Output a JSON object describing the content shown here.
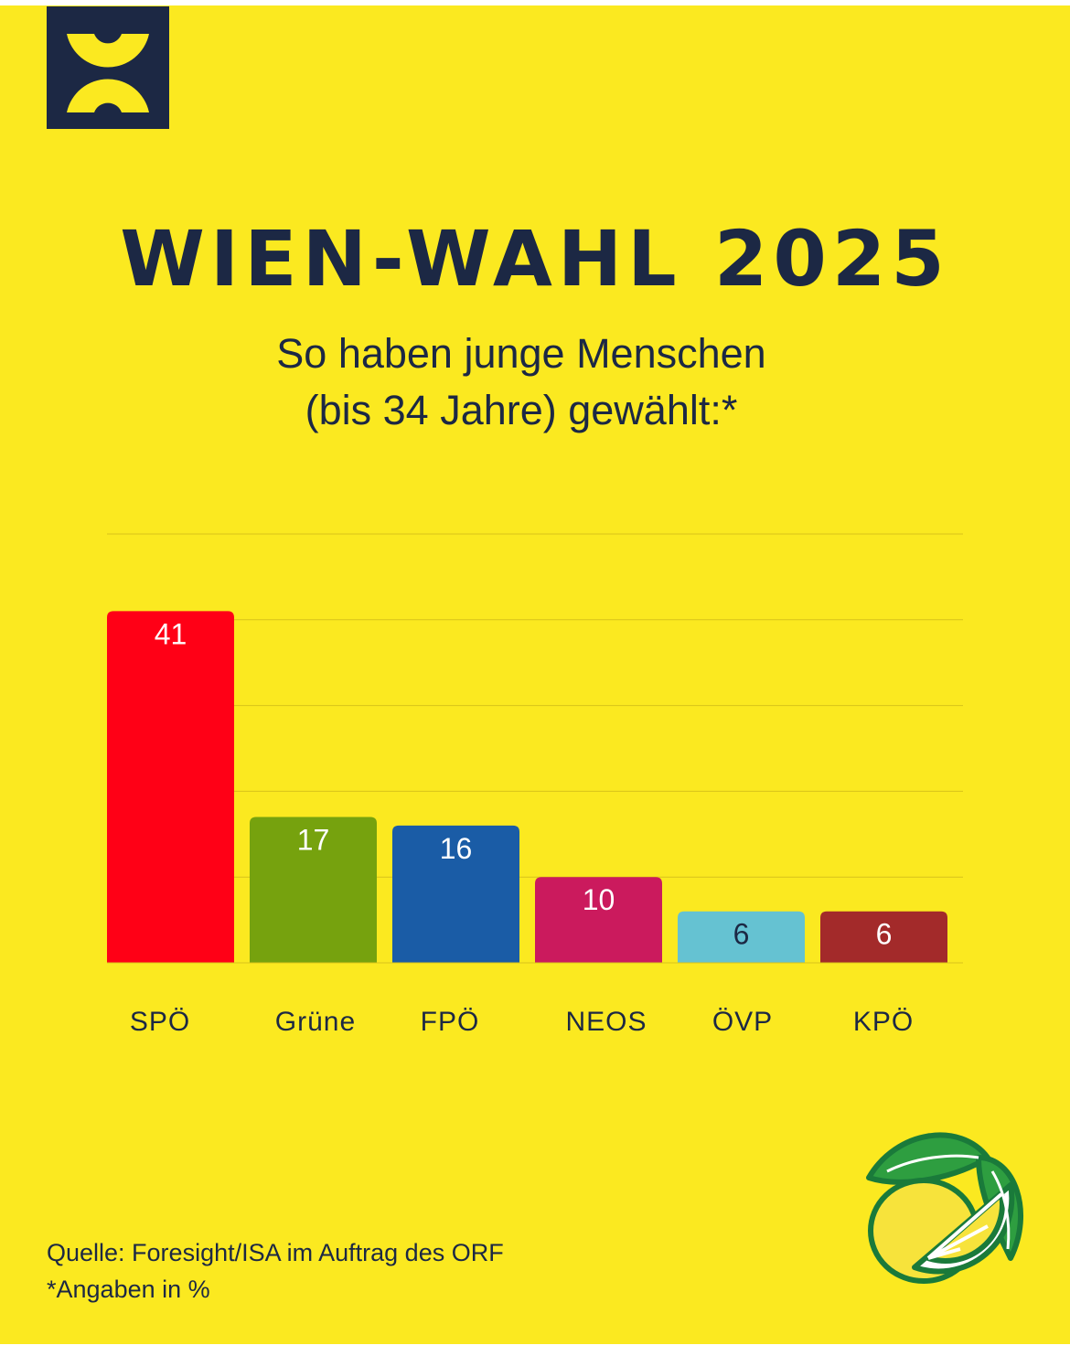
{
  "header": {
    "title": "WIEN-WAHL 2025",
    "subtitle_line1": "So haben junge Menschen",
    "subtitle_line2": "(bis 34 Jahre) gewählt:*"
  },
  "footer": {
    "source": "Quelle: Foresight/ISA im Auftrag des ORF",
    "note": "*Angaben in %"
  },
  "colors": {
    "background": "#fbe920",
    "navy": "#1c2844"
  },
  "icons": [
    "brand-logo-icon",
    "lemon-icon"
  ],
  "chart_data": {
    "type": "bar",
    "categories": [
      "SPÖ",
      "Grüne",
      "FPÖ",
      "NEOS",
      "ÖVP",
      "KPÖ"
    ],
    "values": [
      41,
      17,
      16,
      10,
      6,
      6
    ],
    "colors": [
      "#ff0016",
      "#76a20e",
      "#1a5ca6",
      "#cb1a5d",
      "#65c2d2",
      "#a32a2a"
    ],
    "label_colors": [
      "#ffffff",
      "#ffffff",
      "#ffffff",
      "#ffffff",
      "#1c2844",
      "#ffffff"
    ],
    "title": "",
    "xlabel": "",
    "ylabel": "",
    "ylim": [
      0,
      50
    ],
    "grid": true,
    "legend": "none"
  }
}
